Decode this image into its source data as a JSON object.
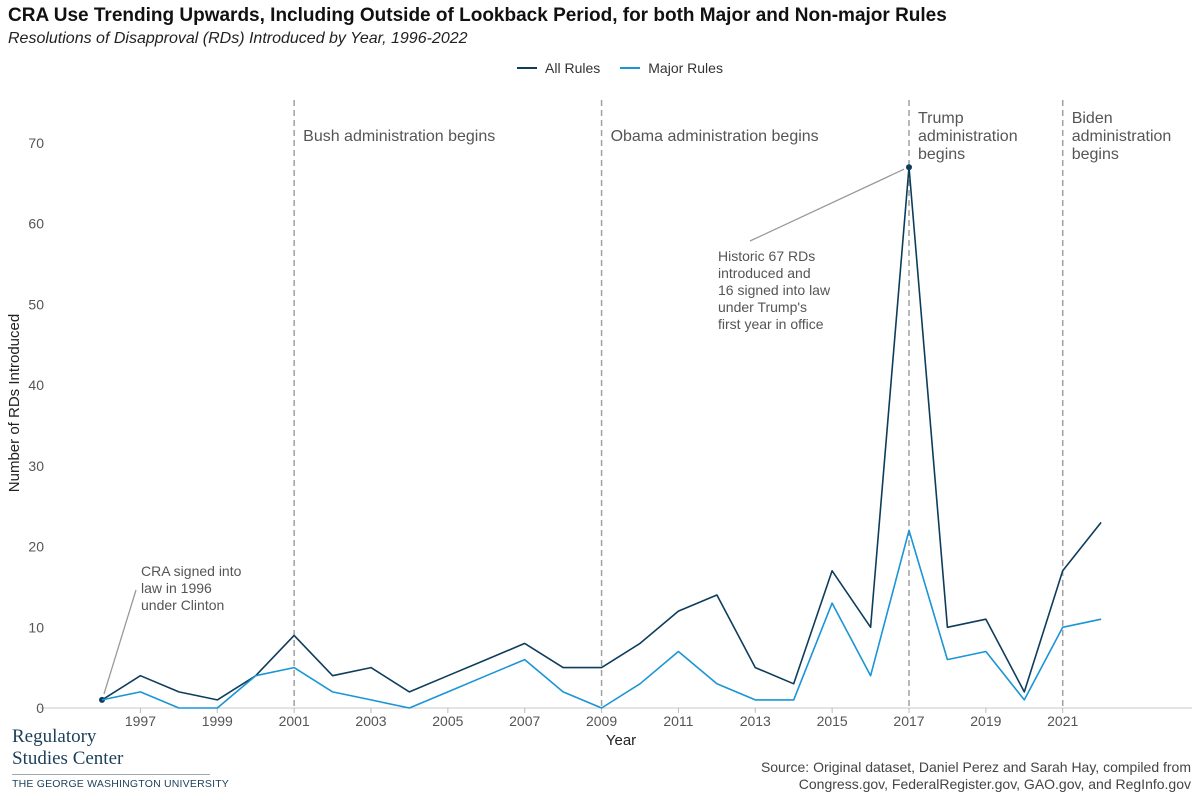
{
  "chart_data": {
    "type": "line",
    "title": "CRA Use Trending Upwards, Including Outside of Lookback Period, for both Major and Non-major Rules",
    "subtitle": "Resolutions of Disapproval (RDs) Introduced by Year, 1996-2022",
    "xlabel": "Year",
    "ylabel": "Number of RDs Introduced",
    "ylim": [
      0,
      75
    ],
    "xlim": [
      1995.5,
      2024.5
    ],
    "yticks": [
      0,
      10,
      20,
      30,
      40,
      50,
      60,
      70
    ],
    "xticks": [
      1997,
      1999,
      2001,
      2003,
      2005,
      2007,
      2009,
      2011,
      2013,
      2015,
      2017,
      2019,
      2021
    ],
    "x": [
      1996,
      1997,
      1998,
      1999,
      2000,
      2001,
      2002,
      2003,
      2004,
      2005,
      2006,
      2007,
      2008,
      2009,
      2010,
      2011,
      2012,
      2013,
      2014,
      2015,
      2016,
      2017,
      2018,
      2019,
      2020,
      2021,
      2022
    ],
    "series": [
      {
        "name": "All Rules",
        "color": "#0e3d5c",
        "values": [
          1,
          4,
          2,
          1,
          4,
          9,
          4,
          5,
          2,
          4,
          6,
          8,
          5,
          5,
          8,
          12,
          14,
          5,
          3,
          17,
          10,
          67,
          10,
          11,
          2,
          17,
          23
        ]
      },
      {
        "name": "Major Rules",
        "color": "#1a95d6",
        "values": [
          1,
          2,
          0,
          0,
          4,
          5,
          2,
          1,
          0,
          2,
          4,
          6,
          2,
          0,
          3,
          7,
          3,
          1,
          1,
          13,
          4,
          22,
          6,
          7,
          1,
          10,
          11
        ]
      }
    ],
    "legend": "top-center",
    "grid": false,
    "administrations": [
      {
        "year": 2001,
        "lines": [
          "Bush administration begins"
        ]
      },
      {
        "year": 2009,
        "lines": [
          "Obama administration begins"
        ]
      },
      {
        "year": 2017,
        "lines": [
          "Trump",
          "administration",
          "begins"
        ]
      },
      {
        "year": 2021,
        "lines": [
          "Biden",
          "administration",
          "begins"
        ]
      }
    ],
    "annotations": [
      {
        "point_year": 1996,
        "point_value": 1,
        "lines": [
          "CRA signed into",
          "law in 1996",
          "under Clinton"
        ]
      },
      {
        "point_year": 2017,
        "point_value": 67,
        "lines": [
          "Historic 67 RDs",
          "introduced and",
          "16 signed into law",
          "under Trump's",
          "first year in office"
        ]
      }
    ]
  },
  "source": {
    "line1": "Source: Original dataset, Daniel Perez and Sarah Hay, compiled from",
    "line2": "Congress.gov, FederalRegister.gov, GAO.gov, and RegInfo.gov"
  },
  "logo": {
    "line1": "Regulatory",
    "line2": "Studies Center",
    "line3": "THE GEORGE WASHINGTON UNIVERSITY"
  }
}
